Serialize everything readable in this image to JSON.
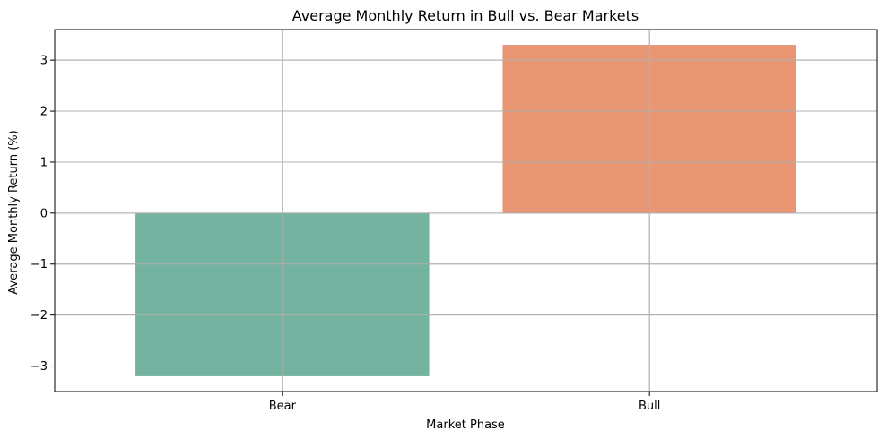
{
  "chart_data": {
    "type": "bar",
    "title": "Average Monthly Return in Bull vs. Bear Markets",
    "xlabel": "Market Phase",
    "ylabel": "Average Monthly Return (%)",
    "categories": [
      "Bear",
      "Bull"
    ],
    "values": [
      -3.2,
      3.3
    ],
    "ylim": [
      -3.5,
      3.6
    ],
    "yticks": [
      -3,
      -2,
      -1,
      0,
      1,
      2,
      3
    ],
    "ytick_labels": [
      "−3",
      "−2",
      "−1",
      "0",
      "1",
      "2",
      "3"
    ],
    "grid": true,
    "bar_colors": [
      "#73b3a0",
      "#e89674"
    ]
  }
}
